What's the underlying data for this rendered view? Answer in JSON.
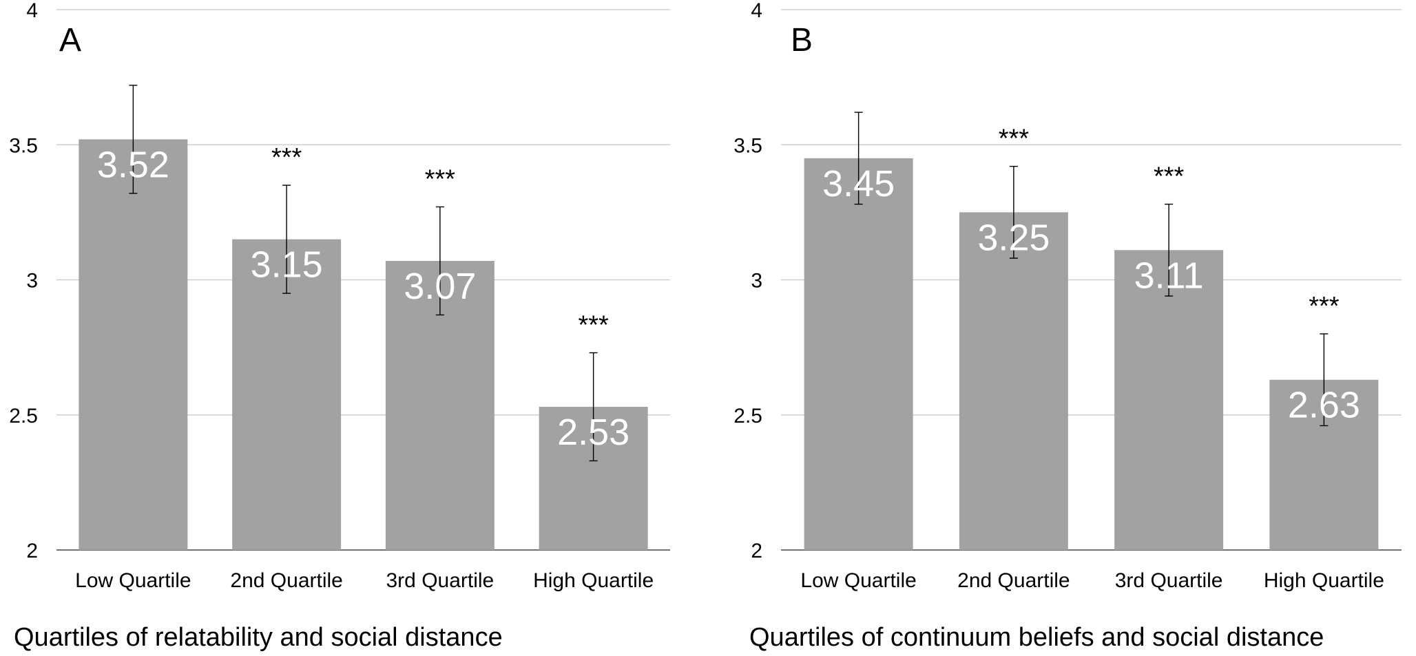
{
  "chart_data": [
    {
      "type": "bar",
      "panel": "A",
      "categories": [
        "Low Quartile",
        "2nd Quartile",
        "3rd Quartile",
        "High Quartile"
      ],
      "values": [
        3.52,
        3.15,
        3.07,
        2.53
      ],
      "value_labels": [
        "3.52",
        "3.15",
        "3.07",
        "2.53"
      ],
      "error_low": [
        3.32,
        2.95,
        2.87,
        2.33
      ],
      "error_high": [
        3.72,
        3.35,
        3.27,
        2.73
      ],
      "significance": [
        "",
        "***",
        "***",
        "***"
      ],
      "xlabel": "Quartiles of relatability and social distance",
      "ylabel": "",
      "ylim": [
        2,
        4
      ],
      "yticks": [
        "2",
        "2.5",
        "3",
        "3.5",
        "4"
      ],
      "grid": true,
      "bar_color": "#a2a2a2"
    },
    {
      "type": "bar",
      "panel": "B",
      "categories": [
        "Low Quartile",
        "2nd Quartile",
        "3rd Quartile",
        "High Quartile"
      ],
      "values": [
        3.45,
        3.25,
        3.11,
        2.63
      ],
      "value_labels": [
        "3.45",
        "3.25",
        "3.11",
        "2.63"
      ],
      "error_low": [
        3.28,
        3.08,
        2.94,
        2.46
      ],
      "error_high": [
        3.62,
        3.42,
        3.28,
        2.8
      ],
      "significance": [
        "",
        "***",
        "***",
        "***"
      ],
      "xlabel": "Quartiles of continuum beliefs and social distance",
      "ylabel": "",
      "ylim": [
        2,
        4
      ],
      "yticks": [
        "2",
        "2.5",
        "3",
        "3.5",
        "4"
      ],
      "grid": true,
      "bar_color": "#a2a2a2"
    }
  ]
}
